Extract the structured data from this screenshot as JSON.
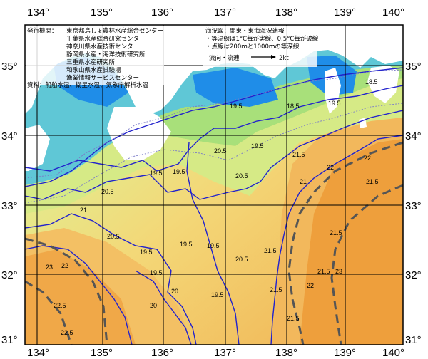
{
  "map": {
    "title": "海況図：関東・東海海況速報",
    "publishers_heading": "発行機関：",
    "publishers": [
      "東京都島しょ農林水産総合センター",
      "千葉県水産総合研究センター",
      "神奈川県水産技術センター",
      "静岡県水産・海洋技術研究所",
      "三重県水産研究所",
      "和歌山県水産試験場",
      "漁業情報サービスセンター"
    ],
    "source": "資料：船舶水温、衛星水温、気象庁解析水温",
    "legend_lines": [
      "・等温線は1°C毎が実線、0.5°C毎が破線",
      "・点線は200ｍと1000ｍの等深線"
    ],
    "current_label": "流向・流速",
    "current_speed": "2kt",
    "lon_labels": [
      "134°",
      "135°",
      "136°",
      "137°",
      "138°",
      "139°",
      "140°"
    ],
    "lat_labels": [
      "35°",
      "34°",
      "33°",
      "32°",
      "31°"
    ],
    "isotherm_labels": [
      {
        "text": "18.5"
      },
      {
        "text": "18.5"
      },
      {
        "text": "19.5"
      },
      {
        "text": "19.5"
      },
      {
        "text": "20.5"
      },
      {
        "text": "20.5"
      },
      {
        "text": "19.5"
      },
      {
        "text": "19.5"
      },
      {
        "text": "19.5"
      },
      {
        "text": "21.5"
      },
      {
        "text": "21.5"
      },
      {
        "text": "21.5"
      },
      {
        "text": "21.5"
      },
      {
        "text": "21.5"
      },
      {
        "text": "22.5"
      },
      {
        "text": "22.5"
      },
      {
        "text": "20.5"
      },
      {
        "text": "20.5"
      },
      {
        "text": "20.5"
      },
      {
        "text": "19.5"
      },
      {
        "text": "19.5"
      },
      {
        "text": "19.5"
      },
      {
        "text": "19.5"
      },
      {
        "text": "19.5"
      },
      {
        "text": "22"
      },
      {
        "text": "22"
      },
      {
        "text": "23"
      },
      {
        "text": "22"
      },
      {
        "text": "21"
      },
      {
        "text": "21"
      },
      {
        "text": "20"
      },
      {
        "text": "20"
      },
      {
        "text": "21.5"
      },
      {
        "text": "22"
      },
      {
        "text": "23"
      },
      {
        "text": "21.5"
      }
    ],
    "colors": {
      "land": "#ffffff",
      "cold_sea": "#1f8de8",
      "cool_sea": "#5fc7d6",
      "mid_sea": "#a8e07a",
      "warm_sea": "#e8ea8a",
      "warmer_sea": "#f6c260",
      "hot_sea": "#f0a040",
      "kuroshio_axis": "#555555",
      "isotherm_line": "#2222cc"
    }
  }
}
